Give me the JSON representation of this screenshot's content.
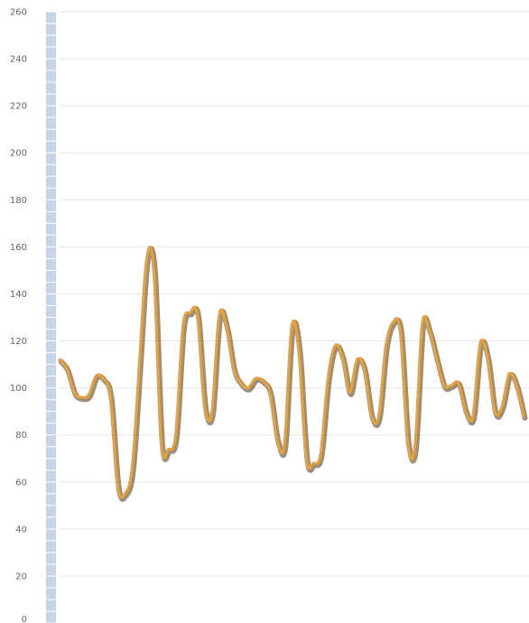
{
  "chart_data": {
    "type": "line",
    "title": "",
    "xlabel": "",
    "ylabel": "",
    "ylim": [
      0,
      260
    ],
    "yticks": [
      0,
      20,
      40,
      60,
      80,
      100,
      120,
      140,
      160,
      180,
      200,
      220,
      240,
      260
    ],
    "grid": true,
    "legend": "none",
    "line_color": "#e8a23a",
    "axis_color": "#c6d4ea",
    "series": [
      {
        "values": [
          112,
          108,
          98,
          96,
          97,
          105,
          104,
          96,
          58,
          55,
          66,
          110,
          155,
          150,
          77,
          74,
          80,
          126,
          132,
          131,
          92,
          90,
          131,
          126,
          108,
          102,
          100,
          104,
          103,
          98,
          78,
          76,
          126,
          116,
          70,
          68,
          72,
          104,
          118,
          113,
          98,
          112,
          108,
          88,
          88,
          118,
          128,
          124,
          77,
          75,
          127,
          124,
          112,
          101,
          101,
          102,
          90,
          88,
          119,
          113,
          90,
          92,
          106,
          101,
          88
        ]
      }
    ]
  }
}
